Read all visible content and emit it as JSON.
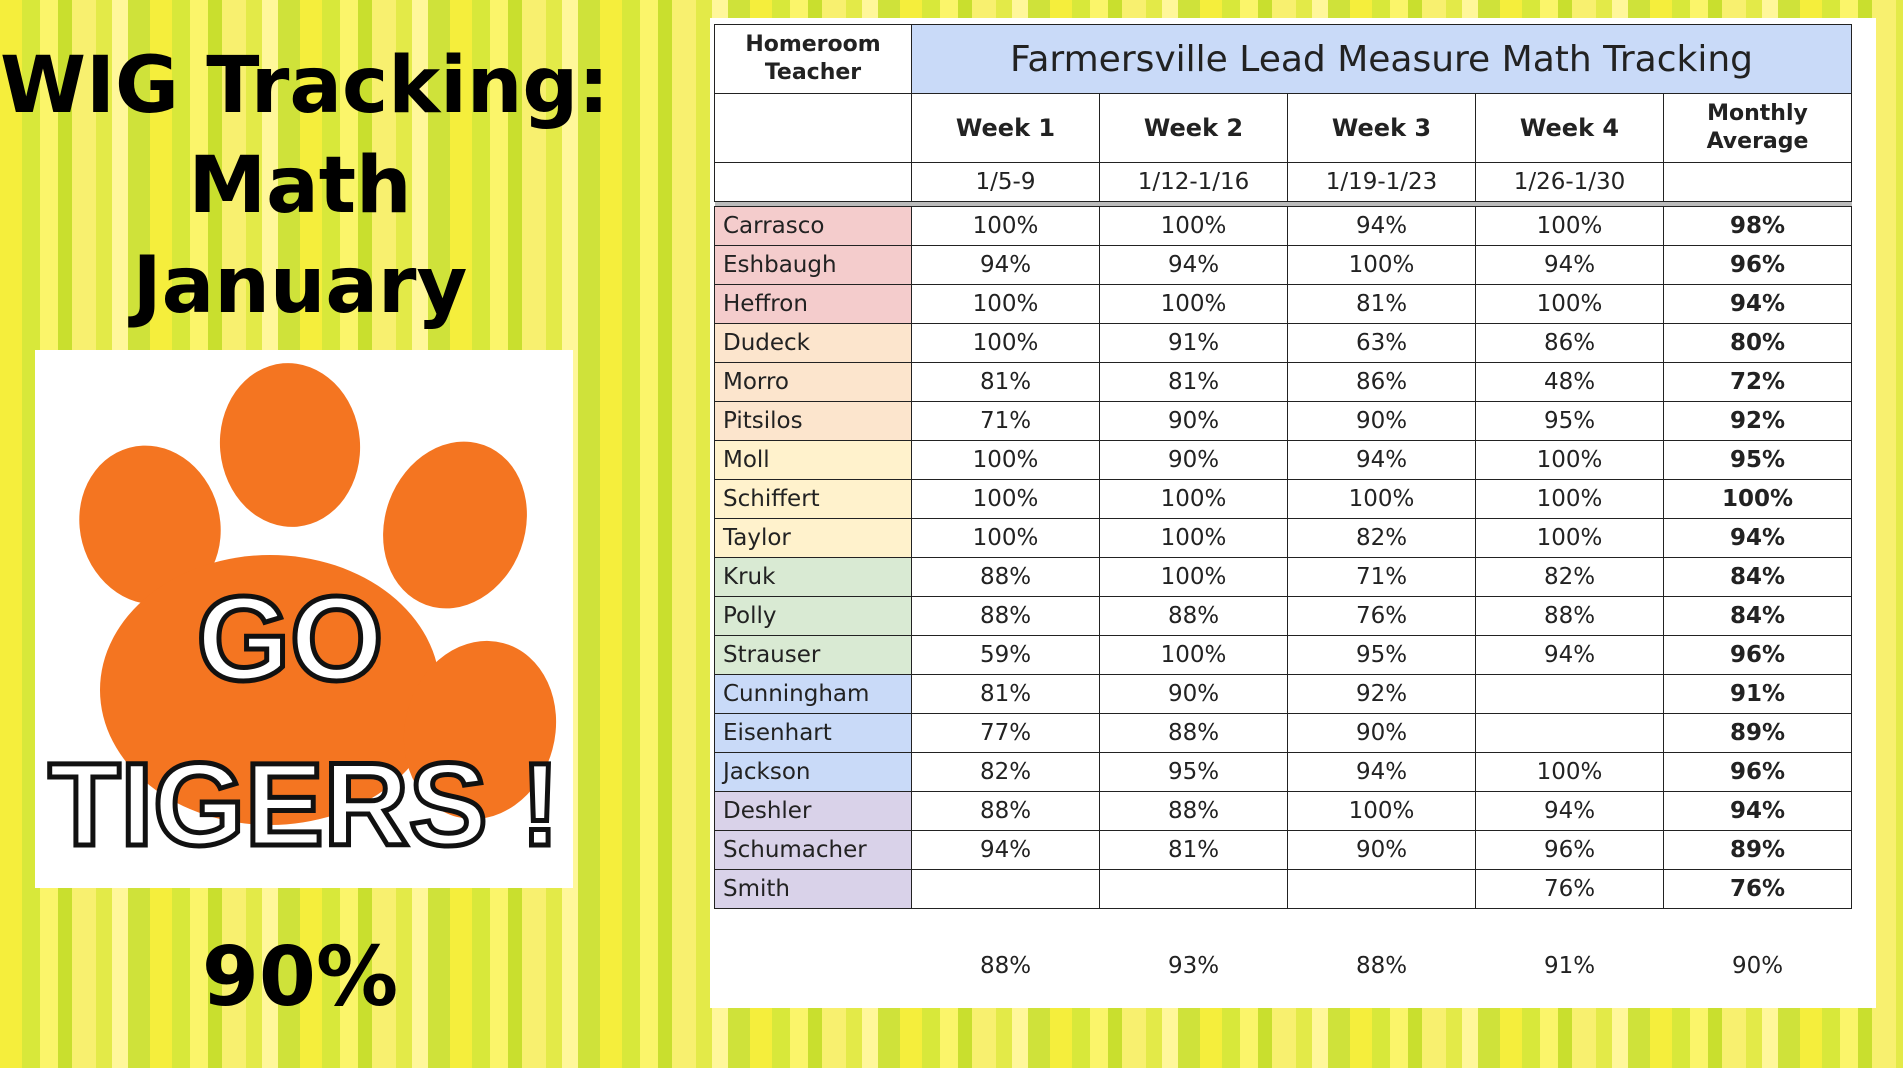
{
  "left": {
    "title_lines": [
      "WIG Tracking:",
      "Math",
      "January"
    ],
    "logo_text_line1": "GO",
    "logo_text_line2": "TIGERS !",
    "overall_percent": "90%"
  },
  "colors": {
    "paw": "#f47521",
    "title_header_bg": "#c9daf8"
  },
  "table": {
    "header_teacher": "Homeroom Teacher",
    "title": "Farmersville Lead Measure Math Tracking",
    "weeks": [
      "Week 1",
      "Week 2",
      "Week 3",
      "Week 4"
    ],
    "avg_label": "Monthly Average",
    "dates": [
      "1/5-9",
      "1/12-1/16",
      "1/19-1/23",
      "1/26-1/30",
      ""
    ],
    "rows": [
      {
        "name": "Carrasco",
        "group": "red",
        "w": [
          "100%",
          "100%",
          "94%",
          "100%"
        ],
        "avg": "98%"
      },
      {
        "name": "Eshbaugh",
        "group": "red",
        "w": [
          "94%",
          "94%",
          "100%",
          "94%"
        ],
        "avg": "96%"
      },
      {
        "name": "Heffron",
        "group": "red",
        "w": [
          "100%",
          "100%",
          "81%",
          "100%"
        ],
        "avg": "94%"
      },
      {
        "name": "Dudeck",
        "group": "orange",
        "w": [
          "100%",
          "91%",
          "63%",
          "86%"
        ],
        "avg": "80%"
      },
      {
        "name": "Morro",
        "group": "orange",
        "w": [
          "81%",
          "81%",
          "86%",
          "48%"
        ],
        "avg": "72%"
      },
      {
        "name": "Pitsilos",
        "group": "orange",
        "w": [
          "71%",
          "90%",
          "90%",
          "95%"
        ],
        "avg": "92%"
      },
      {
        "name": "Moll",
        "group": "yellow",
        "w": [
          "100%",
          "90%",
          "94%",
          "100%"
        ],
        "avg": "95%"
      },
      {
        "name": "Schiffert",
        "group": "yellow",
        "w": [
          "100%",
          "100%",
          "100%",
          "100%"
        ],
        "avg": "100%"
      },
      {
        "name": "Taylor",
        "group": "yellow",
        "w": [
          "100%",
          "100%",
          "82%",
          "100%"
        ],
        "avg": "94%"
      },
      {
        "name": "Kruk",
        "group": "green",
        "w": [
          "88%",
          "100%",
          "71%",
          "82%"
        ],
        "avg": "84%"
      },
      {
        "name": "Polly",
        "group": "green",
        "w": [
          "88%",
          "88%",
          "76%",
          "88%"
        ],
        "avg": "84%"
      },
      {
        "name": "Strauser",
        "group": "green",
        "w": [
          "59%",
          "100%",
          "95%",
          "94%"
        ],
        "avg": "96%"
      },
      {
        "name": "Cunningham",
        "group": "blue",
        "w": [
          "81%",
          "90%",
          "92%",
          ""
        ],
        "avg": "91%"
      },
      {
        "name": "Eisenhart",
        "group": "blue",
        "w": [
          "77%",
          "88%",
          "90%",
          ""
        ],
        "avg": "89%"
      },
      {
        "name": "Jackson",
        "group": "blue",
        "w": [
          "82%",
          "95%",
          "94%",
          "100%"
        ],
        "avg": "96%"
      },
      {
        "name": "Deshler",
        "group": "purple",
        "w": [
          "88%",
          "88%",
          "100%",
          "94%"
        ],
        "avg": "94%"
      },
      {
        "name": "Schumacher",
        "group": "purple",
        "w": [
          "94%",
          "81%",
          "90%",
          "96%"
        ],
        "avg": "89%"
      },
      {
        "name": "Smith",
        "group": "purple",
        "w": [
          "",
          "",
          "",
          "76%"
        ],
        "avg": "76%"
      }
    ],
    "totals": [
      "88%",
      "93%",
      "88%",
      "91%",
      "90%"
    ]
  }
}
